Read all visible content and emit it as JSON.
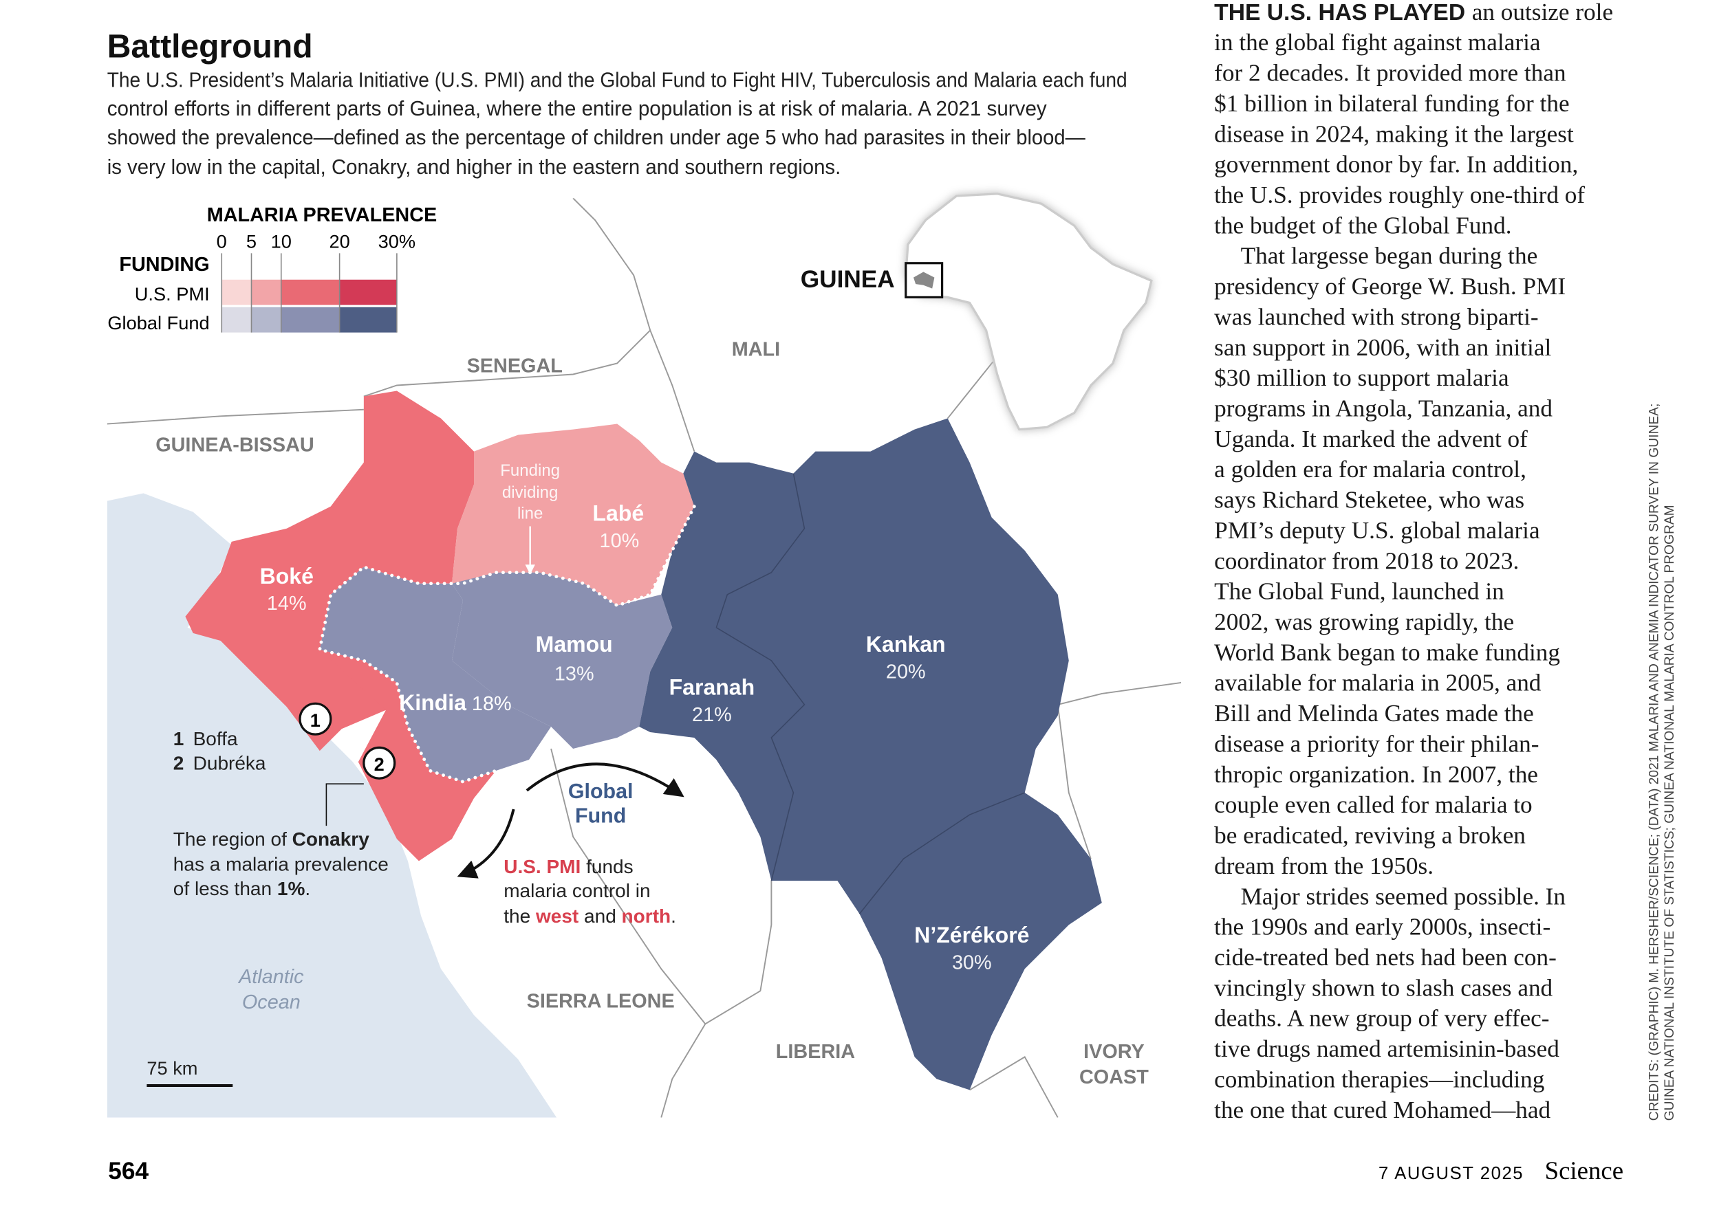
{
  "header": {
    "title": "Battleground",
    "subtitle_lines": [
      "The U.S. President’s Malaria Initiative (U.S. PMI) and the Global Fund to Fight HIV, Tuberculosis and Malaria each fund",
      "control efforts in different parts of Guinea, where the entire population is at risk of malaria. A 2021 survey",
      "showed the prevalence—defined as the percentage of children under age 5 who had parasites in their blood—",
      "is very low in the capital, Conakry, and higher in the eastern and southern regions."
    ]
  },
  "legend": {
    "title": "MALARIA PREVALENCE",
    "ticks": [
      "0",
      "5",
      "10",
      "20",
      "30%"
    ],
    "row_header": "FUNDING",
    "rows": [
      "U.S. PMI",
      "Global Fund"
    ]
  },
  "map": {
    "countries": [
      "SENEGAL",
      "MALI",
      "GUINEA-BISSAU",
      "SIERRA LEONE",
      "LIBERIA",
      "IVORY",
      "COAST"
    ],
    "ocean": [
      "Atlantic",
      "Ocean"
    ],
    "inset_label": "GUINEA",
    "regions": [
      {
        "name": "Boké",
        "prevalence": "14%"
      },
      {
        "name": "Labé",
        "prevalence": "10%"
      },
      {
        "name": "Mamou",
        "prevalence": "13%"
      },
      {
        "name": "Kindia",
        "prevalence": "18%"
      },
      {
        "name": "Faranah",
        "prevalence": "21%"
      },
      {
        "name": "Kankan",
        "prevalence": "20%"
      },
      {
        "name": "N’Zérékoré",
        "prevalence": "30%"
      }
    ],
    "dividing_line_label": [
      "Funding",
      "dividing",
      "line"
    ],
    "places": [
      {
        "number": "1",
        "name": "Boffa"
      },
      {
        "number": "2",
        "name": "Dubréka"
      }
    ],
    "conakry_note": [
      [
        "The region of ",
        "Conakry"
      ],
      [
        "has a malaria prevalence"
      ],
      [
        "of less than ",
        "1%",
        "."
      ]
    ],
    "global_fund_label": [
      "Global",
      "Fund"
    ],
    "pmi_note": [
      [
        "U.S. PMI",
        " funds"
      ],
      [
        "malaria control in"
      ],
      [
        "the ",
        "west",
        " and ",
        "north",
        "."
      ]
    ],
    "scale": "75 km"
  },
  "article": {
    "lead": "THE U.S. HAS PLAYED",
    "paragraphs": [
      [
        "an outsize role",
        "in the global fight against malaria",
        "for 2 decades. It provided more than",
        "$1 billion in bilateral funding for the",
        "disease in 2024, making it the largest",
        "government donor by far. In addition,",
        "the U.S. provides roughly one-third of",
        "the budget of the Global Fund."
      ],
      [
        "That largesse began during the",
        "presidency of George W. Bush. PMI",
        "was launched with strong biparti-",
        "san support in 2006, with an initial",
        "$30 million to support malaria",
        "programs in Angola, Tanzania, and",
        "Uganda. It marked the advent of",
        "a golden era for malaria control,",
        "says Richard Steketee, who was",
        "PMI’s deputy U.S. global malaria",
        "coordinator from 2018 to 2023.",
        "The Global Fund, launched in",
        "2002, was growing rapidly, the",
        "World Bank began to make funding",
        "available for malaria in 2005, and",
        "Bill and Melinda Gates made the",
        "disease a priority for their philan-",
        "thropic organization. In 2007, the",
        "couple even called for malaria to",
        "be eradicated, reviving a broken",
        "dream from the 1950s."
      ],
      [
        "Major strides seemed possible. In",
        "the 1990s and early 2000s, insecti-",
        "cide-treated bed nets had been con-",
        "vincingly shown to slash cases and",
        "deaths. A new group of very effec-",
        "tive drugs named artemisinin-based",
        "combination therapies—including",
        "the one that cured Mohamed—had"
      ]
    ]
  },
  "credits": [
    "CREDITS: (GRAPHIC) M. HERSHER/SCIENCE; (DATA) 2021 MALARIA AND ANEMIA INDICATOR SURVEY IN GUINEA;",
    "GUINEA NATIONAL INSTITUTE OF STATISTICS; GUINEA NATIONAL MALARIA CONTROL PROGRAM"
  ],
  "footer": {
    "page": "564",
    "date": "7 AUGUST 2025",
    "journal": "Science"
  }
}
